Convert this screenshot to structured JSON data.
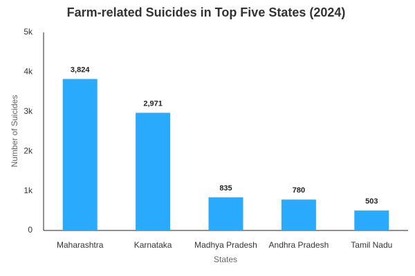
{
  "chart_data": {
    "type": "bar",
    "title": "Farm-related Suicides in Top Five States (2024)",
    "x_label": "States",
    "y_label": "Number of Suicides",
    "categories": [
      "Maharashtra",
      "Karnataka",
      "Madhya Pradesh",
      "Andhra Pradesh",
      "Tamil Nadu"
    ],
    "values": [
      3824,
      2971,
      835,
      780,
      503
    ],
    "value_labels": [
      "3,824",
      "2,971",
      "835",
      "780",
      "503"
    ],
    "color": "#2aaafc",
    "ylim": [
      0,
      5000
    ],
    "yticks": [
      0,
      {
        "value": 1000,
        "label": "1k"
      },
      {
        "value": 2000,
        "label": "2k"
      },
      {
        "value": 3000,
        "label": "3k"
      },
      {
        "value": 4000,
        "label": "4k"
      },
      {
        "value": 5000,
        "label": "5k"
      }
    ],
    "grid": false
  }
}
